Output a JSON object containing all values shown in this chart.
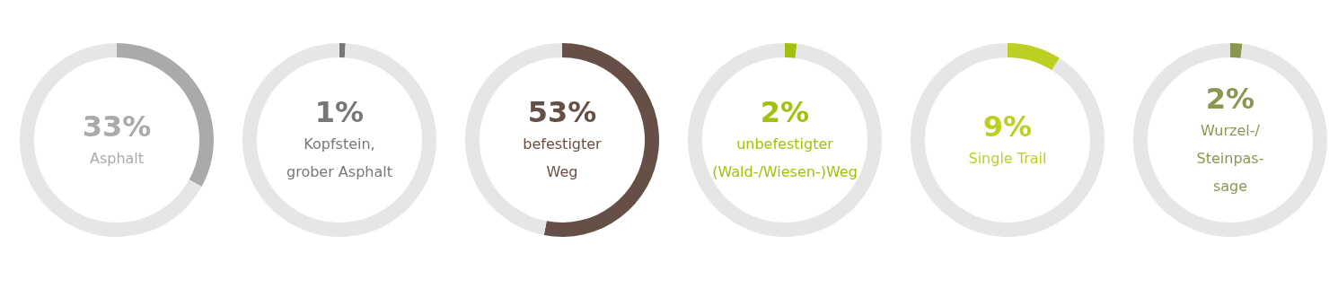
{
  "chart_data": [
    {
      "type": "donut",
      "categories": [
        "Asphalt",
        null
      ],
      "values": [
        33,
        67
      ],
      "colors": [
        "#aaaaaa",
        "#e6e6e6"
      ],
      "value_labels": [
        "33%",
        null
      ]
    },
    {
      "type": "donut",
      "categories": [
        "Kopfstein,\ngrober Asphalt",
        null
      ],
      "values": [
        1,
        99
      ],
      "colors": [
        "#777777",
        "#e6e6e6"
      ],
      "value_labels": [
        "1%",
        null
      ]
    },
    {
      "type": "donut",
      "categories": [
        "befestigter\nWeg",
        null
      ],
      "values": [
        53,
        47
      ],
      "colors": [
        "#664f46",
        "#e6e6e6"
      ],
      "value_labels": [
        "53%",
        null
      ]
    },
    {
      "type": "donut",
      "categories": [
        "unbefestigter\n(Wald-/Wiesen-)Weg",
        null
      ],
      "values": [
        2,
        98
      ],
      "colors": [
        "#a2c00e",
        "#e6e6e6"
      ],
      "value_labels": [
        "2%",
        null
      ]
    },
    {
      "type": "donut",
      "categories": [
        "Single Trail",
        null
      ],
      "values": [
        9,
        91
      ],
      "colors": [
        "#bccf22",
        "#e6e6e6"
      ],
      "value_labels": [
        "9%",
        null
      ]
    },
    {
      "type": "donut",
      "categories": [
        "Wurzel-/\nSteinpas-\nsage",
        null
      ],
      "values": [
        2,
        98
      ],
      "colors": [
        "#8b9650",
        "#e6e6e6"
      ],
      "value_labels": [
        "2%",
        null
      ]
    }
  ]
}
